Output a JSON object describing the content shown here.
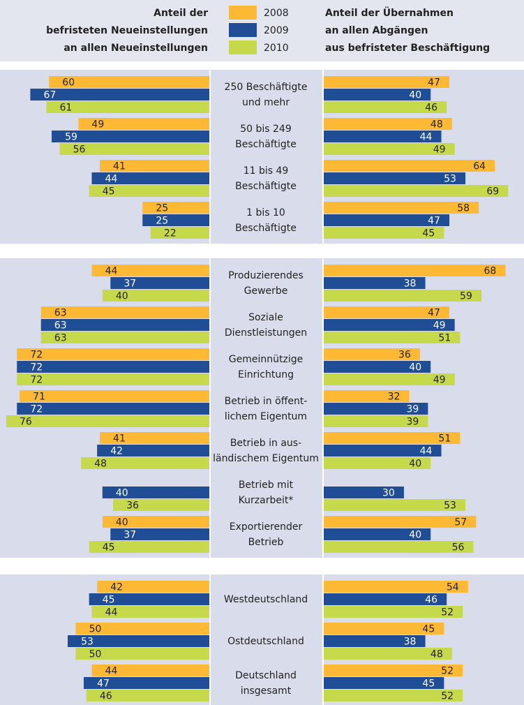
{
  "chart_data": {
    "type": "butterfly",
    "left_title": [
      "Anteil der",
      "befristeten Neueinstellungen",
      "an allen Neueinstellungen"
    ],
    "right_title": [
      "Anteil der Übernahmen",
      "an allen Abgängen",
      "aus befristeter Beschäftigung"
    ],
    "categories": [
      [
        [
          "250 Beschäftigte",
          "und mehr"
        ],
        [
          "50 bis 249",
          "Beschäftigte"
        ],
        [
          "11 bis 49",
          "Beschäftigte"
        ],
        [
          "1 bis 10",
          "Beschäftigte"
        ]
      ],
      [
        [
          "Produzierendes",
          "Gewerbe"
        ],
        [
          "Soziale",
          "Dienstleistungen"
        ],
        [
          "Gemeinnützige",
          "Einrichtung"
        ],
        [
          "Betrieb in öffent-",
          "lichem Eigentum"
        ],
        [
          "Betrieb in aus-",
          "ländischem Eigentum"
        ],
        [
          "Betrieb mit",
          "Kurzarbeit*"
        ],
        [
          "Exportierender",
          "Betrieb"
        ]
      ],
      [
        [
          "Westdeutschland"
        ],
        [
          "Ostdeutschland"
        ],
        [
          "Deutschland",
          "insgesamt"
        ]
      ]
    ],
    "series": [
      {
        "name": "2008",
        "color": "#fdb933",
        "left": [
          [
            60,
            49,
            41,
            25
          ],
          [
            44,
            63,
            72,
            71,
            41,
            null,
            40
          ],
          [
            42,
            50,
            44
          ]
        ],
        "right": [
          [
            47,
            48,
            64,
            58
          ],
          [
            68,
            47,
            36,
            32,
            51,
            null,
            57
          ],
          [
            54,
            45,
            52
          ]
        ]
      },
      {
        "name": "2009",
        "color": "#1f4e96",
        "left": [
          [
            67,
            59,
            44,
            25
          ],
          [
            37,
            63,
            72,
            72,
            42,
            40,
            37
          ],
          [
            45,
            53,
            47
          ]
        ],
        "right": [
          [
            40,
            44,
            53,
            47
          ],
          [
            38,
            49,
            40,
            39,
            44,
            30,
            40
          ],
          [
            46,
            38,
            45
          ]
        ]
      },
      {
        "name": "2010",
        "color": "#c5d94a",
        "left": [
          [
            61,
            56,
            45,
            22
          ],
          [
            40,
            63,
            72,
            76,
            48,
            36,
            45
          ],
          [
            44,
            50,
            46
          ]
        ],
        "right": [
          [
            46,
            49,
            69,
            45
          ],
          [
            59,
            51,
            49,
            39,
            40,
            53,
            56
          ],
          [
            52,
            48,
            52
          ]
        ]
      }
    ]
  }
}
